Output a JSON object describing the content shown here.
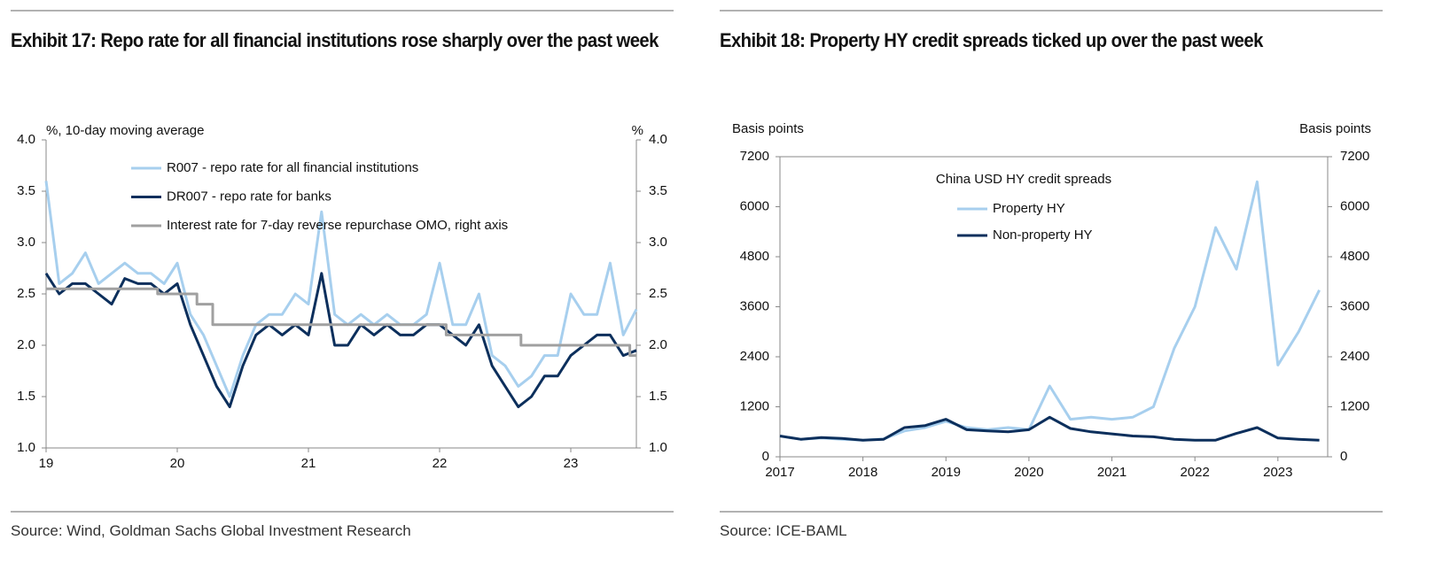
{
  "chart_data": [
    {
      "type": "line",
      "title": "Exhibit 17: Repo rate for all financial institutions rose sharply over the past week",
      "source": "Source: Wind, Goldman Sachs Global Investment Research",
      "ylabel": "%, 10-day moving average",
      "y2label": "%",
      "legend": "upper left",
      "x": [
        19.0,
        19.1,
        19.2,
        19.3,
        19.4,
        19.5,
        19.6,
        19.7,
        19.8,
        19.9,
        20.0,
        20.1,
        20.2,
        20.3,
        20.4,
        20.5,
        20.6,
        20.7,
        20.8,
        20.9,
        21.0,
        21.1,
        21.2,
        21.3,
        21.4,
        21.5,
        21.6,
        21.7,
        21.8,
        21.9,
        22.0,
        22.1,
        22.2,
        22.3,
        22.4,
        22.5,
        22.6,
        22.7,
        22.8,
        22.9,
        23.0,
        23.1,
        23.2,
        23.3,
        23.4,
        23.5
      ],
      "xlim": [
        19,
        23.5
      ],
      "xticks": [
        19,
        20,
        21,
        22,
        23
      ],
      "ylim": [
        1,
        4
      ],
      "yticks": [
        {
          "value": 1,
          "label": "1.0"
        },
        1.5,
        {
          "value": 2,
          "label": "2.0"
        },
        2.5,
        {
          "value": 3,
          "label": "3.0"
        },
        3.5,
        {
          "value": 4,
          "label": "4.0"
        }
      ],
      "y2lim": [
        1,
        4
      ],
      "y2ticks": [
        {
          "value": 1,
          "label": "1.0"
        },
        1.5,
        {
          "value": 2,
          "label": "2.0"
        },
        2.5,
        {
          "value": 3,
          "label": "3.0"
        },
        3.5,
        {
          "value": 4,
          "label": "4.0"
        }
      ],
      "series": [
        {
          "name": "R007 - repo rate for all financial institutions",
          "color": "#a7cfee",
          "values": [
            3.6,
            2.6,
            2.7,
            2.9,
            2.6,
            2.7,
            2.8,
            2.7,
            2.7,
            2.6,
            2.8,
            2.3,
            2.1,
            1.8,
            1.5,
            1.9,
            2.2,
            2.3,
            2.3,
            2.5,
            2.4,
            3.3,
            2.3,
            2.2,
            2.3,
            2.2,
            2.3,
            2.2,
            2.2,
            2.3,
            2.8,
            2.2,
            2.2,
            2.5,
            1.9,
            1.8,
            1.6,
            1.7,
            1.9,
            1.9,
            2.5,
            2.3,
            2.3,
            2.8,
            2.1,
            2.35
          ]
        },
        {
          "name": "DR007 - repo rate for banks",
          "color": "#0c2f5c",
          "values": [
            2.7,
            2.5,
            2.6,
            2.6,
            2.5,
            2.4,
            2.65,
            2.6,
            2.6,
            2.5,
            2.6,
            2.2,
            1.9,
            1.6,
            1.4,
            1.8,
            2.1,
            2.2,
            2.1,
            2.2,
            2.1,
            2.7,
            2.0,
            2.0,
            2.2,
            2.1,
            2.2,
            2.1,
            2.1,
            2.2,
            2.2,
            2.1,
            2.0,
            2.2,
            1.8,
            1.6,
            1.4,
            1.5,
            1.7,
            1.7,
            1.9,
            2.0,
            2.1,
            2.1,
            1.9,
            1.95
          ]
        },
        {
          "name": "Interest rate for 7-day reverse repurchase OMO, right axis",
          "color": "#a0a0a0",
          "axis": "y2",
          "x": [
            19.0,
            19.85,
            19.85,
            20.15,
            20.15,
            20.27,
            20.27,
            22.05,
            22.05,
            22.62,
            22.62,
            23.45,
            23.45,
            23.5
          ],
          "values": [
            2.55,
            2.55,
            2.5,
            2.5,
            2.4,
            2.4,
            2.2,
            2.2,
            2.1,
            2.1,
            2.0,
            2.0,
            1.9,
            1.9
          ]
        }
      ]
    },
    {
      "type": "line",
      "title": "Exhibit 18: Property HY credit spreads ticked up over the past week",
      "source": "Source: ICE-BAML",
      "ylabel": "Basis points",
      "y2label": "Basis points",
      "legend": "upper left",
      "legend_title": "China USD HY credit spreads",
      "x": [
        2017,
        2017.25,
        2017.5,
        2017.75,
        2018,
        2018.25,
        2018.5,
        2018.75,
        2019,
        2019.25,
        2019.5,
        2019.75,
        2020,
        2020.25,
        2020.5,
        2020.75,
        2021,
        2021.25,
        2021.5,
        2021.75,
        2022,
        2022.25,
        2022.5,
        2022.75,
        2023,
        2023.25,
        2023.5
      ],
      "xlim": [
        2017,
        2023.6
      ],
      "xticks": [
        2017,
        2018,
        2019,
        2020,
        2021,
        2022,
        2023
      ],
      "ylim": [
        0,
        7200
      ],
      "yticks": [
        0,
        1200,
        2400,
        3600,
        4800,
        6000,
        7200
      ],
      "y2lim": [
        0,
        7200
      ],
      "y2ticks": [
        0,
        1200,
        2400,
        3600,
        4800,
        6000,
        7200
      ],
      "series": [
        {
          "name": "Property HY",
          "color": "#a7cfee",
          "values": [
            500,
            420,
            450,
            420,
            400,
            430,
            620,
            700,
            850,
            700,
            650,
            700,
            650,
            1700,
            900,
            950,
            900,
            950,
            1200,
            2600,
            3600,
            5500,
            4500,
            6600,
            2200,
            3000,
            4000
          ]
        },
        {
          "name": "Non-property HY",
          "color": "#0c2f5c",
          "values": [
            500,
            420,
            460,
            440,
            400,
            420,
            700,
            750,
            900,
            650,
            620,
            600,
            650,
            950,
            680,
            600,
            550,
            500,
            480,
            420,
            400,
            400,
            560,
            700,
            450,
            420,
            400
          ]
        }
      ]
    }
  ]
}
